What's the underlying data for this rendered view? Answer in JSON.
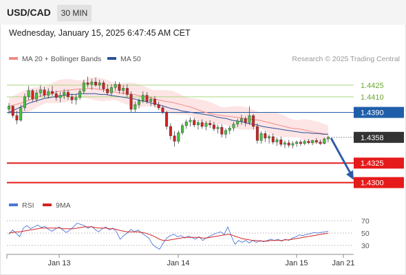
{
  "header": {
    "symbol": "USD/CAD",
    "timeframe": "30 MIN"
  },
  "datetime": "Wednesday, January 15, 2025 6:47:45 AM CET",
  "legend": {
    "ma20_label": "MA 20 + Bollinger Bands",
    "ma50_label": "MA 50",
    "credit": "Research © 2025 Trading Central",
    "rsi_label": "RSI",
    "rsi_ma_label": "9MA"
  },
  "colors": {
    "up": "#44c240",
    "down": "#cf2323",
    "ma20": "#f08a8a",
    "ma50": "#2b4f9b",
    "bands": "#fde5e5",
    "resistance": "#a9d67e",
    "pivot": "#1f5ea8",
    "support": "#e51b1b",
    "rsi": "#4a76d8",
    "rsi_ma": "#d42222"
  },
  "chart_data": [
    {
      "type": "candlestick",
      "instrument": "USD/CAD",
      "interval": "30 MIN",
      "ylim": [
        1.4282,
        1.4446
      ],
      "x_ticks": [
        "Jan 13",
        "Jan 14",
        "Jan 15",
        "Jan 21"
      ],
      "series_ma": [
        {
          "name": "MA 20 + Bollinger Bands"
        },
        {
          "name": "MA 50"
        }
      ],
      "ohlc": [
        [
          1.4394,
          1.4402,
          1.4388,
          1.4398
        ],
        [
          1.4398,
          1.4399,
          1.4383,
          1.4386
        ],
        [
          1.4386,
          1.4392,
          1.4375,
          1.438
        ],
        [
          1.438,
          1.44,
          1.4378,
          1.4396
        ],
        [
          1.4396,
          1.4414,
          1.4392,
          1.441
        ],
        [
          1.441,
          1.4424,
          1.4406,
          1.4418
        ],
        [
          1.4418,
          1.442,
          1.4404,
          1.4407
        ],
        [
          1.4407,
          1.4419,
          1.4403,
          1.4415
        ],
        [
          1.4415,
          1.4425,
          1.441,
          1.4419
        ],
        [
          1.4419,
          1.4423,
          1.4409,
          1.4412
        ],
        [
          1.4412,
          1.4421,
          1.4408,
          1.4417
        ],
        [
          1.4417,
          1.4424,
          1.4411,
          1.4414
        ],
        [
          1.4414,
          1.4418,
          1.4405,
          1.4409
        ],
        [
          1.4409,
          1.4416,
          1.4403,
          1.4412
        ],
        [
          1.4412,
          1.442,
          1.4407,
          1.4416
        ],
        [
          1.4416,
          1.4419,
          1.4406,
          1.441
        ],
        [
          1.441,
          1.4414,
          1.4401,
          1.4406
        ],
        [
          1.4406,
          1.4413,
          1.44,
          1.4409
        ],
        [
          1.4409,
          1.442,
          1.4406,
          1.4417
        ],
        [
          1.4417,
          1.4432,
          1.4414,
          1.4428
        ],
        [
          1.4428,
          1.4436,
          1.4422,
          1.4426
        ],
        [
          1.4426,
          1.4433,
          1.4419,
          1.4429
        ],
        [
          1.4429,
          1.4435,
          1.4423,
          1.4425
        ],
        [
          1.4425,
          1.4432,
          1.442,
          1.4428
        ],
        [
          1.4428,
          1.4431,
          1.4416,
          1.442
        ],
        [
          1.442,
          1.4426,
          1.4412,
          1.4415
        ],
        [
          1.4415,
          1.4426,
          1.4411,
          1.4422
        ],
        [
          1.4422,
          1.443,
          1.4418,
          1.4426
        ],
        [
          1.4426,
          1.4429,
          1.4414,
          1.4418
        ],
        [
          1.4418,
          1.4425,
          1.4413,
          1.4421
        ],
        [
          1.4421,
          1.4426,
          1.441,
          1.4413
        ],
        [
          1.4413,
          1.4417,
          1.439,
          1.4394
        ],
        [
          1.4394,
          1.4404,
          1.439,
          1.44
        ],
        [
          1.44,
          1.4408,
          1.4395,
          1.4405
        ],
        [
          1.4405,
          1.4417,
          1.4402,
          1.4412
        ],
        [
          1.4412,
          1.4416,
          1.4401,
          1.4404
        ],
        [
          1.4404,
          1.441,
          1.4398,
          1.4407
        ],
        [
          1.4407,
          1.4411,
          1.4397,
          1.44
        ],
        [
          1.44,
          1.4404,
          1.4393,
          1.4396
        ],
        [
          1.4396,
          1.4399,
          1.4388,
          1.439
        ],
        [
          1.439,
          1.4392,
          1.4368,
          1.4372
        ],
        [
          1.4372,
          1.4376,
          1.4355,
          1.436
        ],
        [
          1.436,
          1.4366,
          1.4346,
          1.4353
        ],
        [
          1.4353,
          1.4367,
          1.435,
          1.4364
        ],
        [
          1.4364,
          1.4376,
          1.4361,
          1.4373
        ],
        [
          1.4373,
          1.4381,
          1.4369,
          1.4378
        ],
        [
          1.4378,
          1.4384,
          1.4372,
          1.438
        ],
        [
          1.438,
          1.4383,
          1.4371,
          1.4374
        ],
        [
          1.4374,
          1.438,
          1.4368,
          1.4377
        ],
        [
          1.4377,
          1.4381,
          1.4369,
          1.4372
        ],
        [
          1.4372,
          1.4379,
          1.4367,
          1.4376
        ],
        [
          1.4376,
          1.438,
          1.437,
          1.4374
        ],
        [
          1.4374,
          1.4378,
          1.4366,
          1.4369
        ],
        [
          1.4369,
          1.4374,
          1.4363,
          1.4371
        ],
        [
          1.4371,
          1.4375,
          1.4358,
          1.4362
        ],
        [
          1.4362,
          1.437,
          1.4357,
          1.4367
        ],
        [
          1.4367,
          1.4373,
          1.4362,
          1.437
        ],
        [
          1.437,
          1.4378,
          1.4366,
          1.4375
        ],
        [
          1.4375,
          1.4382,
          1.4371,
          1.4379
        ],
        [
          1.4379,
          1.4387,
          1.4374,
          1.4382
        ],
        [
          1.4382,
          1.4385,
          1.4372,
          1.4377
        ],
        [
          1.4377,
          1.4398,
          1.4374,
          1.4386
        ],
        [
          1.4386,
          1.4388,
          1.4368,
          1.4372
        ],
        [
          1.4372,
          1.4376,
          1.435,
          1.4354
        ],
        [
          1.4354,
          1.4366,
          1.435,
          1.4363
        ],
        [
          1.4363,
          1.4366,
          1.4352,
          1.4357
        ],
        [
          1.4357,
          1.4362,
          1.435,
          1.4359
        ],
        [
          1.4359,
          1.4363,
          1.4349,
          1.4352
        ],
        [
          1.4352,
          1.4358,
          1.4347,
          1.4355
        ],
        [
          1.4355,
          1.4359,
          1.4346,
          1.4349
        ],
        [
          1.4349,
          1.4354,
          1.4344,
          1.4351
        ],
        [
          1.4351,
          1.4355,
          1.4345,
          1.4348
        ],
        [
          1.4348,
          1.4353,
          1.4344,
          1.435
        ],
        [
          1.435,
          1.4354,
          1.4346,
          1.4352
        ],
        [
          1.4352,
          1.4355,
          1.4347,
          1.435
        ],
        [
          1.435,
          1.4355,
          1.4348,
          1.4353
        ],
        [
          1.4353,
          1.4356,
          1.4349,
          1.4351
        ],
        [
          1.4351,
          1.4355,
          1.4348,
          1.4354
        ],
        [
          1.4354,
          1.4357,
          1.435,
          1.4352
        ],
        [
          1.4352,
          1.4355,
          1.4348,
          1.435
        ],
        [
          1.435,
          1.4358,
          1.4349,
          1.4356
        ],
        [
          1.4356,
          1.436,
          1.4352,
          1.4358
        ]
      ],
      "ma20": [
        1.4398,
        1.44,
        1.4402,
        1.4405,
        1.4408,
        1.4411,
        1.4413,
        1.4415,
        1.4417,
        1.4418,
        1.4419,
        1.442,
        1.442,
        1.4421,
        1.442,
        1.4419,
        1.4418,
        1.4416,
        1.4415,
        1.4414,
        1.4413,
        1.4411,
        1.441,
        1.4408,
        1.4406,
        1.4404,
        1.4403,
        1.4401,
        1.4399,
        1.4397,
        1.4394,
        1.4391,
        1.4389,
        1.4387,
        1.4386,
        1.4385,
        1.4384,
        1.4383,
        1.4382,
        1.4381,
        1.438,
        1.4378,
        1.4376,
        1.4374,
        1.4372,
        1.437,
        1.4369,
        1.4368,
        1.4366,
        1.4364,
        1.4363,
        1.4362
      ],
      "ma50": [
        1.439,
        1.4393,
        1.4396,
        1.4399,
        1.4402,
        1.4404,
        1.4406,
        1.4408,
        1.4409,
        1.441,
        1.4411,
        1.4412,
        1.4413,
        1.4413,
        1.4414,
        1.4414,
        1.4414,
        1.4414,
        1.4413,
        1.4413,
        1.4412,
        1.4411,
        1.441,
        1.4409,
        1.4408,
        1.4407,
        1.4405,
        1.4404,
        1.4402,
        1.4401,
        1.4399,
        1.4397,
        1.4395,
        1.4394,
        1.4392,
        1.4391,
        1.439,
        1.4389,
        1.4388,
        1.4387,
        1.4386,
        1.4384,
        1.4383,
        1.4382,
        1.438,
        1.4379,
        1.4378,
        1.4376,
        1.4375,
        1.4374,
        1.4372,
        1.4371,
        1.437,
        1.4369,
        1.4368,
        1.4367,
        1.4366,
        1.4365,
        1.4364,
        1.4364,
        1.4363,
        1.4363,
        1.4362,
        1.4362
      ],
      "levels": [
        {
          "value": "1.4425",
          "kind": "resistance"
        },
        {
          "value": "1.4410",
          "kind": "resistance"
        },
        {
          "value": "1.4390",
          "kind": "pivot"
        },
        {
          "value": "1.4358",
          "kind": "last"
        },
        {
          "value": "1.4325",
          "kind": "support"
        },
        {
          "value": "1.4300",
          "kind": "support"
        }
      ],
      "forecast_arrow": {
        "from": 1.4358,
        "to": 1.43
      }
    },
    {
      "type": "line",
      "title": "RSI",
      "ylim": [
        20,
        80
      ],
      "y_ticks": [
        "70",
        "50",
        "30"
      ],
      "series": [
        {
          "name": "RSI",
          "values": [
            48,
            55,
            50,
            44,
            58,
            62,
            57,
            60,
            63,
            59,
            61,
            56,
            53,
            57,
            60,
            55,
            51,
            55,
            60,
            66,
            64,
            62,
            58,
            61,
            56,
            52,
            57,
            60,
            55,
            58,
            52,
            40,
            46,
            50,
            56,
            52,
            55,
            50,
            46,
            42,
            32,
            27,
            24,
            34,
            42,
            46,
            48,
            44,
            46,
            42,
            45,
            43,
            40,
            44,
            38,
            42,
            45,
            48,
            50,
            52,
            48,
            60,
            45,
            32,
            38,
            35,
            38,
            34,
            38,
            35,
            38,
            36,
            38,
            40,
            38,
            40,
            37,
            40,
            38,
            42,
            44,
            47,
            46,
            48,
            49,
            51,
            50,
            51,
            52,
            53
          ]
        },
        {
          "name": "9MA",
          "values": [
            50,
            51,
            52,
            52,
            53,
            54,
            55,
            56,
            57,
            58,
            58,
            58,
            58,
            58,
            58,
            57,
            57,
            57,
            57,
            58,
            59,
            60,
            60,
            60,
            59,
            58,
            58,
            58,
            57,
            57,
            56,
            54,
            53,
            52,
            52,
            52,
            52,
            51,
            50,
            48,
            46,
            43,
            40,
            38,
            38,
            39,
            40,
            41,
            42,
            43,
            43,
            43,
            43,
            43,
            42,
            42,
            43,
            44,
            45,
            46,
            47,
            48,
            47,
            45,
            43,
            41,
            40,
            39,
            38,
            38,
            37,
            37,
            37,
            38,
            38,
            38,
            38,
            39,
            39,
            40,
            41,
            42,
            43,
            44,
            45,
            46,
            47,
            48,
            49,
            50
          ]
        }
      ]
    }
  ]
}
